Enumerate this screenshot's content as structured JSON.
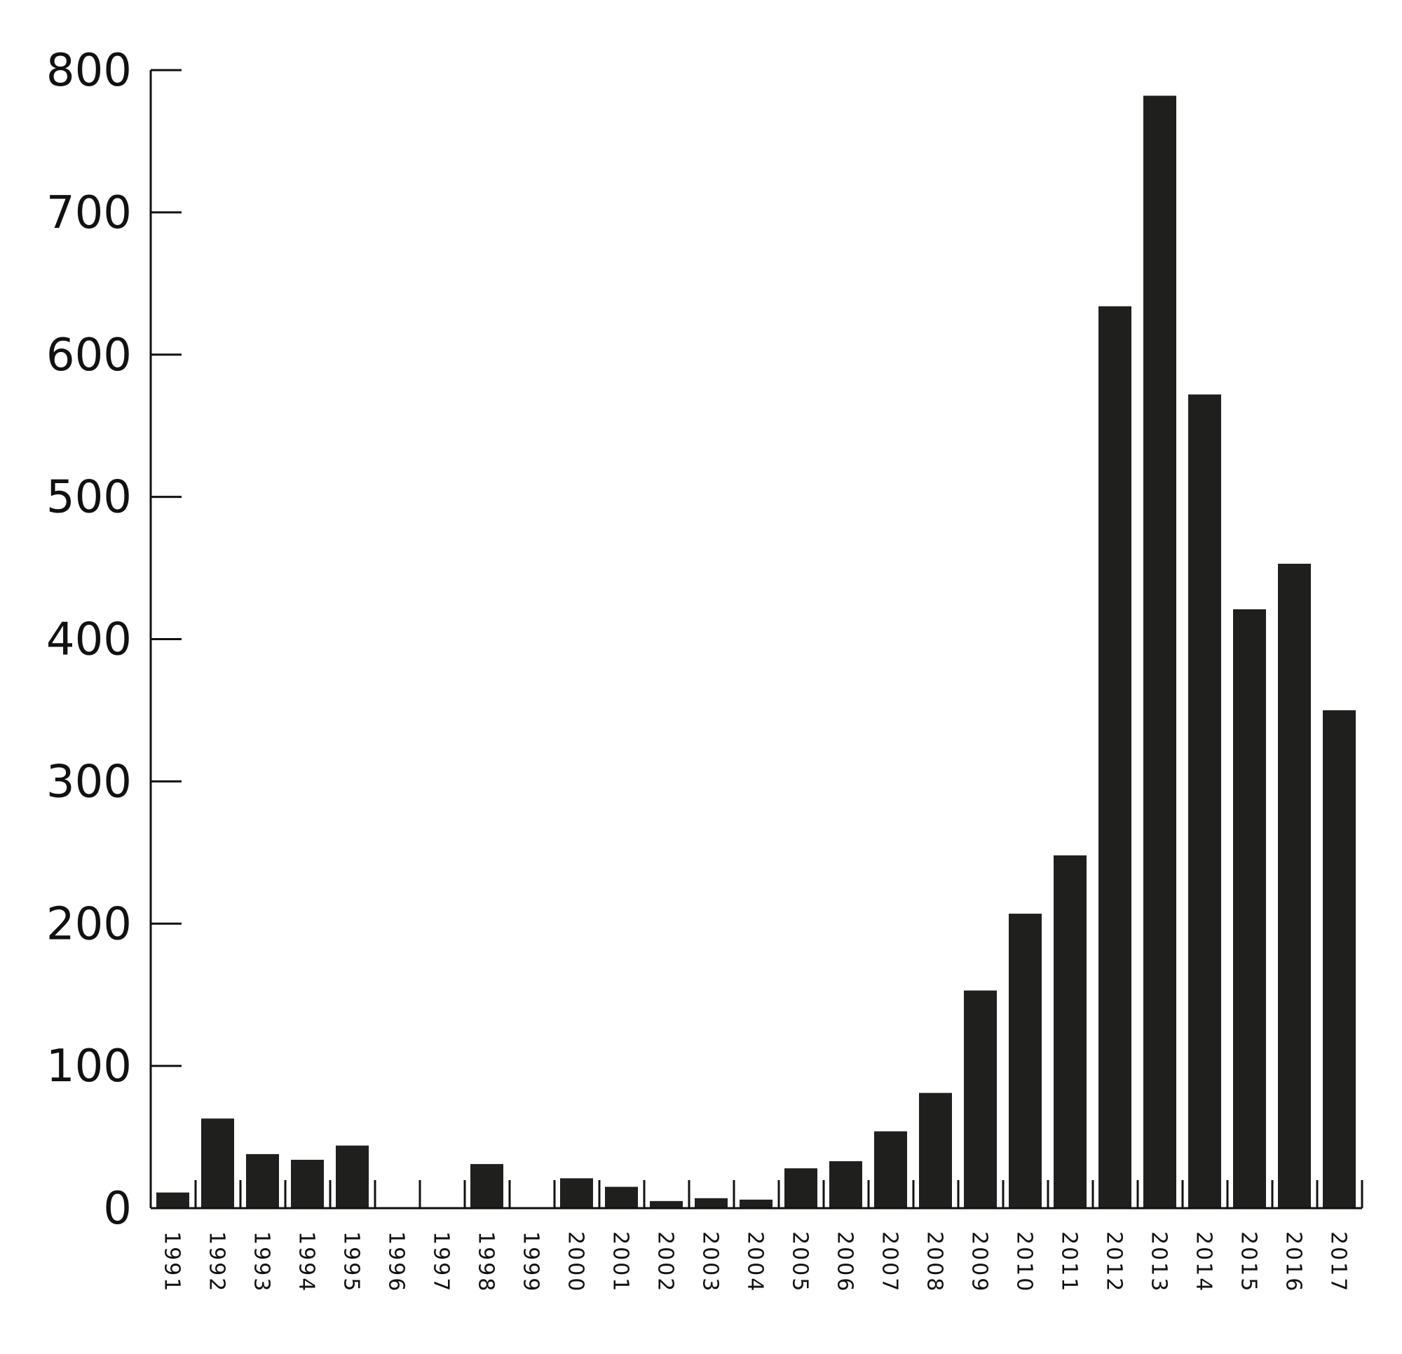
{
  "chart_data": {
    "type": "bar",
    "title": "",
    "xlabel": "",
    "ylabel": "",
    "categories": [
      "1991",
      "1992",
      "1993",
      "1994",
      "1995",
      "1996",
      "1997",
      "1998",
      "1999",
      "2000",
      "2001",
      "2002",
      "2003",
      "2004",
      "2005",
      "2006",
      "2007",
      "2008",
      "2009",
      "2010",
      "2011",
      "2012",
      "2013",
      "2014",
      "2015",
      "2016",
      "2017"
    ],
    "values": [
      11,
      63,
      38,
      34,
      44,
      0,
      0,
      31,
      0,
      21,
      15,
      5,
      7,
      6,
      28,
      33,
      54,
      81,
      153,
      207,
      248,
      634,
      782,
      572,
      421,
      453,
      350
    ],
    "ylim": [
      0,
      800
    ],
    "yticks": [
      0,
      100,
      200,
      300,
      400,
      500,
      600,
      700,
      800
    ],
    "bar_color": "#1f1f1d",
    "axis_color": "#111111",
    "grid": false,
    "legend": "none"
  }
}
